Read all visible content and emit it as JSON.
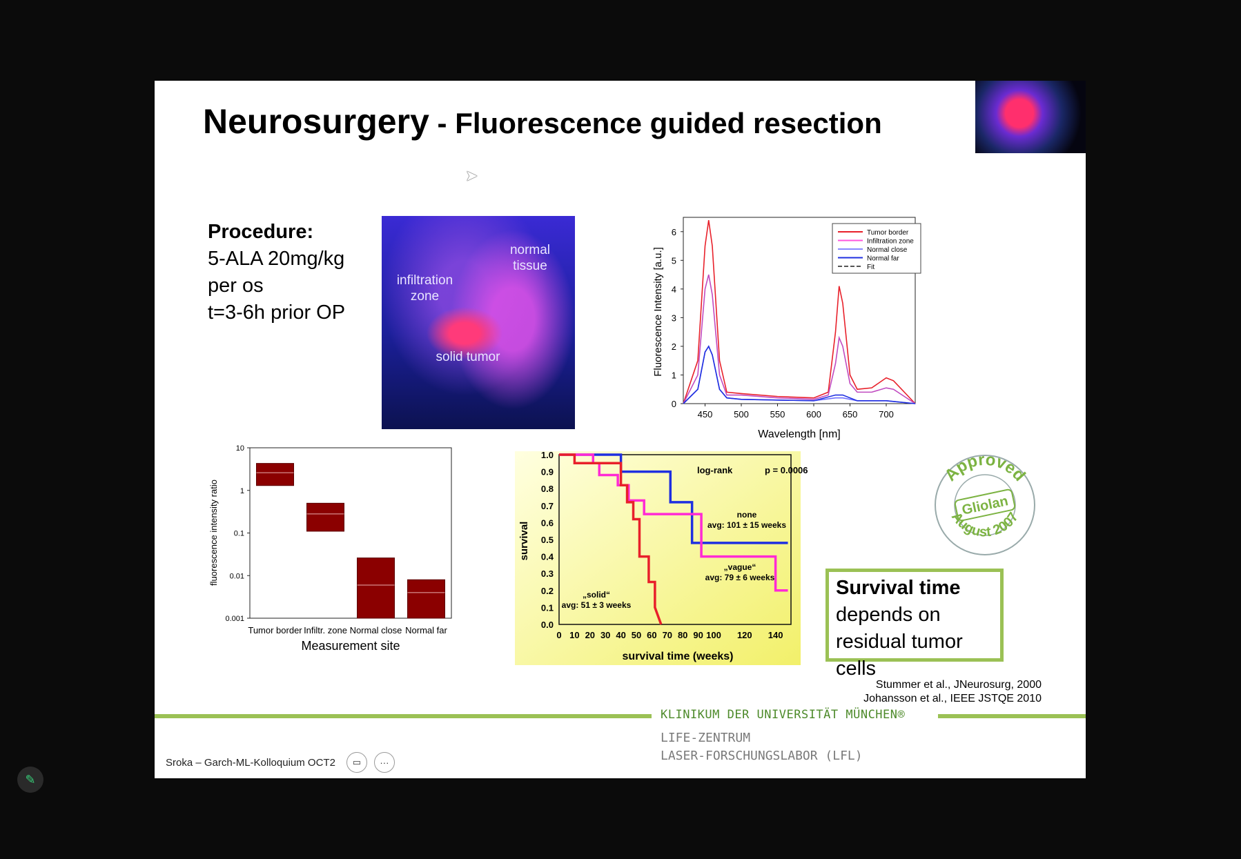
{
  "slide": {
    "title_main": "Neurosurgery",
    "title_sep": " - ",
    "title_sub": "Fluorescence guided resection",
    "procedure": {
      "heading": "Procedure:",
      "lines": [
        "5-ALA 20mg/kg",
        "per os",
        "t=3-6h prior OP"
      ]
    },
    "photo_labels": {
      "normal": "normal tissue",
      "infiltration": "infiltration zone",
      "solid": "solid tumor"
    },
    "spectrum": {
      "ylabel": "Fluorescence Intensity [a.u.]",
      "xlabel": "Wavelength [nm]",
      "legend": [
        "Tumor border",
        "Infiltration zone",
        "Normal close",
        "Normal far",
        "Fit"
      ],
      "xticks": [
        "450",
        "500",
        "550",
        "600",
        "650",
        "700"
      ],
      "yticks": [
        "0",
        "1",
        "2",
        "3",
        "4",
        "5",
        "6"
      ]
    },
    "boxplot": {
      "ylabel": "fluorescence intensity ratio",
      "xlabel": "Measurement site",
      "yticks": [
        "10",
        "1",
        "0.1",
        "0.01",
        "0.001"
      ],
      "categories": [
        "Tumor border",
        "Infiltr. zone",
        "Normal close",
        "Normal far"
      ]
    },
    "survival": {
      "ylabel": "survival",
      "xlabel": "survival time (weeks)",
      "xticks": [
        "0",
        "10",
        "20",
        "30",
        "40",
        "50",
        "60",
        "70",
        "80",
        "90",
        "100",
        "120",
        "140"
      ],
      "yticks": [
        "1.0",
        "0.9",
        "0.8",
        "0.7",
        "0.6",
        "0.5",
        "0.4",
        "0.3",
        "0.2",
        "0.1",
        "0.0"
      ],
      "logrank": "log-rank",
      "p": "p = 0.0006",
      "none_label": "none",
      "none_avg": "avg: 101 ± 15 weeks",
      "vague_label": "„vague“",
      "vague_avg": "avg: 79 ± 6 weeks",
      "solid_label": "„solid“",
      "solid_avg": "avg: 51 ± 3 weeks"
    },
    "stamp_text": [
      "Approved",
      "Gliolan",
      "August 2007"
    ],
    "survival_box": {
      "heading": "Survival time",
      "lines": [
        "depends on",
        "residual tumor cells"
      ]
    },
    "refs": [
      "Stummer et al., JNeurosurg, 2000",
      "Johansson et al., IEEE JSTQE 2010"
    ],
    "footer": {
      "klinikum": "KLINIKUM DER UNIVERSITÄT MÜNCHEN®",
      "life1": "LIFE-ZENTRUM",
      "life2": "LASER-FORSCHUNGSLABOR (LFL)"
    }
  },
  "toolbar": {
    "label": "Sroka – Garch-ML-Kolloquium OCT2",
    "camera_icon": "camera-icon",
    "more_icon": "more-icon"
  },
  "colors": {
    "green": "#9bc155",
    "dark_red_bar": "#8b0000",
    "red": "#e8202a",
    "magenta": "#ff2ad4",
    "blue": "#1f2fe0"
  },
  "chart_data": [
    {
      "type": "line",
      "xlabel": "Wavelength [nm]",
      "ylabel": "Fluorescence Intensity [a.u.]",
      "xlim": [
        420,
        740
      ],
      "ylim": [
        0,
        6.5
      ],
      "series": [
        {
          "name": "Tumor border",
          "x": [
            420,
            440,
            450,
            455,
            460,
            470,
            480,
            500,
            550,
            600,
            620,
            630,
            635,
            640,
            650,
            660,
            680,
            700,
            710,
            740
          ],
          "y": [
            0,
            1.5,
            5.5,
            6.4,
            5.5,
            1.5,
            0.4,
            0.35,
            0.25,
            0.2,
            0.4,
            2.5,
            4.1,
            3.5,
            1.0,
            0.5,
            0.55,
            0.9,
            0.8,
            0
          ]
        },
        {
          "name": "Infiltration zone",
          "x": [
            420,
            440,
            450,
            455,
            460,
            470,
            480,
            500,
            550,
            600,
            620,
            630,
            635,
            640,
            650,
            660,
            680,
            700,
            710,
            740
          ],
          "y": [
            0,
            1.0,
            4.0,
            4.5,
            3.8,
            1.0,
            0.3,
            0.3,
            0.2,
            0.15,
            0.3,
            1.4,
            2.3,
            2.0,
            0.7,
            0.4,
            0.4,
            0.55,
            0.5,
            0
          ]
        },
        {
          "name": "Normal close",
          "x": [
            420,
            440,
            450,
            455,
            460,
            470,
            480,
            500,
            600,
            630,
            640,
            660,
            700,
            740
          ],
          "y": [
            0,
            0.5,
            1.8,
            2.0,
            1.7,
            0.5,
            0.2,
            0.15,
            0.1,
            0.2,
            0.2,
            0.1,
            0.1,
            0
          ]
        },
        {
          "name": "Normal far",
          "x": [
            420,
            440,
            450,
            455,
            460,
            470,
            480,
            500,
            600,
            630,
            640,
            660,
            700,
            740
          ],
          "y": [
            0,
            0.5,
            1.8,
            2.0,
            1.7,
            0.5,
            0.2,
            0.15,
            0.1,
            0.3,
            0.3,
            0.1,
            0.1,
            0
          ]
        }
      ]
    },
    {
      "type": "bar",
      "categories": [
        "Tumor border",
        "Infiltr. zone",
        "Normal close",
        "Normal far"
      ],
      "xlabel": "Measurement site",
      "ylabel": "fluorescence intensity ratio",
      "log": true,
      "ylim": [
        0.001,
        10
      ],
      "q1": [
        1.3,
        0.11,
        0.001,
        0.001
      ],
      "q3": [
        4.3,
        0.5,
        0.026,
        0.008
      ],
      "median": [
        2.6,
        0.28,
        0.006,
        0.004
      ]
    },
    {
      "type": "line",
      "xlabel": "survival time (weeks)",
      "ylabel": "survival",
      "xlim": [
        0,
        150
      ],
      "ylim": [
        0,
        1
      ],
      "series": [
        {
          "name": "none",
          "x": [
            0,
            40,
            40,
            72,
            72,
            86,
            86,
            148
          ],
          "y": [
            1.0,
            1.0,
            0.9,
            0.9,
            0.72,
            0.72,
            0.48,
            0.48
          ]
        },
        {
          "name": "vague",
          "x": [
            0,
            22,
            22,
            26,
            26,
            38,
            38,
            45,
            45,
            55,
            55,
            92,
            92,
            140,
            140,
            148
          ],
          "y": [
            1.0,
            1.0,
            0.95,
            0.95,
            0.88,
            0.88,
            0.82,
            0.82,
            0.73,
            0.73,
            0.65,
            0.65,
            0.4,
            0.4,
            0.2,
            0.2
          ]
        },
        {
          "name": "solid",
          "x": [
            0,
            10,
            10,
            40,
            40,
            44,
            44,
            48,
            48,
            52,
            52,
            58,
            58,
            62,
            62,
            66
          ],
          "y": [
            1.0,
            1.0,
            0.95,
            0.95,
            0.82,
            0.82,
            0.72,
            0.72,
            0.62,
            0.62,
            0.4,
            0.4,
            0.25,
            0.25,
            0.1,
            0.0
          ]
        }
      ]
    }
  ]
}
